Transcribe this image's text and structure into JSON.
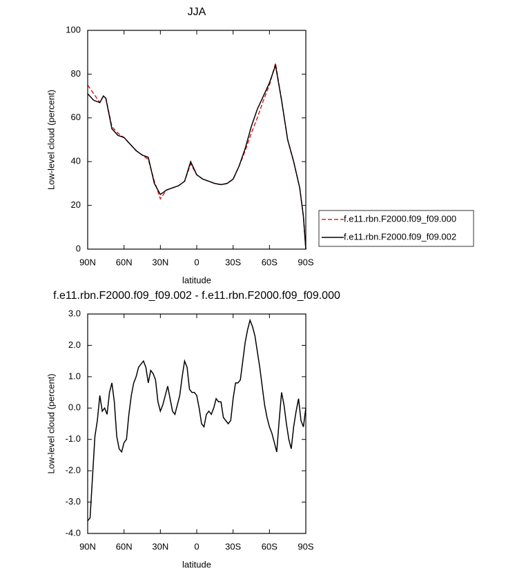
{
  "chart_data": [
    {
      "type": "line",
      "title": "JJA",
      "xlabel": "latitude",
      "ylabel": "Low-level cloud (percent)",
      "x": [
        90,
        85,
        80,
        77,
        75,
        70,
        65,
        60,
        55,
        50,
        45,
        40,
        35,
        30,
        25,
        20,
        15,
        10,
        5,
        0,
        -5,
        -10,
        -15,
        -20,
        -25,
        -30,
        -35,
        -40,
        -45,
        -50,
        -55,
        -60,
        -65,
        -70,
        -75,
        -80,
        -85,
        -88,
        -90
      ],
      "series": [
        {
          "name": "f.e11.rbn.F2000.f09_f09.000",
          "color": "#e41a1c",
          "dashed": true,
          "values": [
            75,
            71,
            67,
            70,
            69,
            56,
            53,
            51,
            48,
            45,
            43,
            41,
            31,
            23,
            27,
            28,
            29,
            31,
            39,
            34,
            32,
            31,
            30,
            29.5,
            30,
            32,
            38,
            45,
            53,
            60,
            68,
            75,
            85,
            68,
            50,
            40,
            28,
            15,
            0
          ]
        },
        {
          "name": "f.e11.rbn.F2000.f09_f09.002",
          "color": "#000000",
          "dashed": false,
          "values": [
            71,
            68,
            67,
            70,
            69,
            55,
            52,
            51,
            48,
            45,
            43,
            42,
            30,
            25,
            27,
            28,
            29,
            31,
            40,
            34,
            32,
            31,
            30,
            29.5,
            30,
            32,
            38,
            46,
            56,
            64,
            70,
            76,
            84,
            68,
            50,
            40,
            28,
            15,
            0
          ]
        }
      ],
      "xlim": [
        90,
        -90
      ],
      "xticks": [
        {
          "value": 90,
          "label": "90N"
        },
        {
          "value": 60,
          "label": "60N"
        },
        {
          "value": 30,
          "label": "30N"
        },
        0,
        {
          "value": -30,
          "label": "30S"
        },
        {
          "value": -60,
          "label": "60S"
        },
        {
          "value": -90,
          "label": "90S"
        }
      ],
      "ylim": [
        0,
        100
      ],
      "yticks": [
        0,
        20,
        40,
        60,
        80,
        100
      ],
      "legend": "right"
    },
    {
      "type": "line",
      "title": "f.e11.rbn.F2000.f09_f09.002 - f.e11.rbn.F2000.f09_f09.000",
      "xlabel": "latitude",
      "ylabel": "Low-level cloud (percent)",
      "x": [
        90,
        88,
        86,
        84,
        82,
        80,
        78,
        76,
        74,
        72,
        70,
        68,
        66,
        64,
        62,
        60,
        58,
        56,
        54,
        52,
        50,
        48,
        46,
        44,
        42,
        40,
        38,
        36,
        34,
        32,
        30,
        28,
        26,
        24,
        22,
        20,
        18,
        16,
        14,
        12,
        10,
        8,
        6,
        4,
        2,
        0,
        -2,
        -4,
        -6,
        -8,
        -10,
        -12,
        -14,
        -16,
        -18,
        -20,
        -22,
        -24,
        -26,
        -28,
        -30,
        -32,
        -34,
        -36,
        -38,
        -40,
        -42,
        -44,
        -46,
        -48,
        -50,
        -52,
        -54,
        -56,
        -58,
        -60,
        -62,
        -64,
        -66,
        -68,
        -70,
        -72,
        -74,
        -76,
        -78,
        -80,
        -82,
        -84,
        -86,
        -88,
        -90
      ],
      "color": "#000000",
      "values": [
        -3.6,
        -3.5,
        -2.2,
        -0.9,
        -0.4,
        0.4,
        -0.1,
        0.0,
        -0.2,
        0.5,
        0.8,
        0.2,
        -0.9,
        -1.3,
        -1.4,
        -1.1,
        -1.0,
        -0.2,
        0.4,
        0.8,
        1.0,
        1.3,
        1.4,
        1.5,
        1.3,
        0.8,
        1.2,
        1.1,
        0.9,
        0.2,
        -0.1,
        0.1,
        0.4,
        0.7,
        0.3,
        -0.1,
        -0.2,
        0.1,
        0.4,
        1.0,
        1.5,
        1.3,
        0.6,
        0.5,
        0.5,
        0.4,
        0.0,
        -0.5,
        -0.6,
        -0.2,
        -0.1,
        -0.2,
        0.0,
        0.3,
        0.2,
        0.2,
        -0.3,
        -0.4,
        -0.5,
        -0.4,
        0.3,
        0.8,
        0.8,
        0.9,
        1.5,
        2.1,
        2.5,
        2.8,
        2.6,
        2.3,
        1.8,
        1.3,
        0.7,
        0.1,
        -0.3,
        -0.6,
        -0.8,
        -1.1,
        -1.4,
        -0.4,
        0.5,
        0.1,
        -0.5,
        -1.0,
        -1.3,
        -0.6,
        -0.1,
        0.3,
        -0.4,
        -0.6,
        0.0
      ],
      "xlim": [
        90,
        -90
      ],
      "xticks": [
        {
          "value": 90,
          "label": "90N"
        },
        {
          "value": 60,
          "label": "60N"
        },
        {
          "value": 30,
          "label": "30N"
        },
        0,
        {
          "value": -30,
          "label": "30S"
        },
        {
          "value": -60,
          "label": "60S"
        },
        {
          "value": -90,
          "label": "90S"
        }
      ],
      "ylim": [
        -4,
        3
      ],
      "yticks": [
        {
          "value": -4,
          "label": "-4.0"
        },
        {
          "value": -3,
          "label": "-3.0"
        },
        {
          "value": -2,
          "label": "-2.0"
        },
        {
          "value": -1,
          "label": "-1.0"
        },
        {
          "value": 0,
          "label": "0.0"
        },
        {
          "value": 1,
          "label": "1.0"
        },
        {
          "value": 2,
          "label": "2.0"
        },
        {
          "value": 3,
          "label": "3.0"
        }
      ]
    }
  ]
}
